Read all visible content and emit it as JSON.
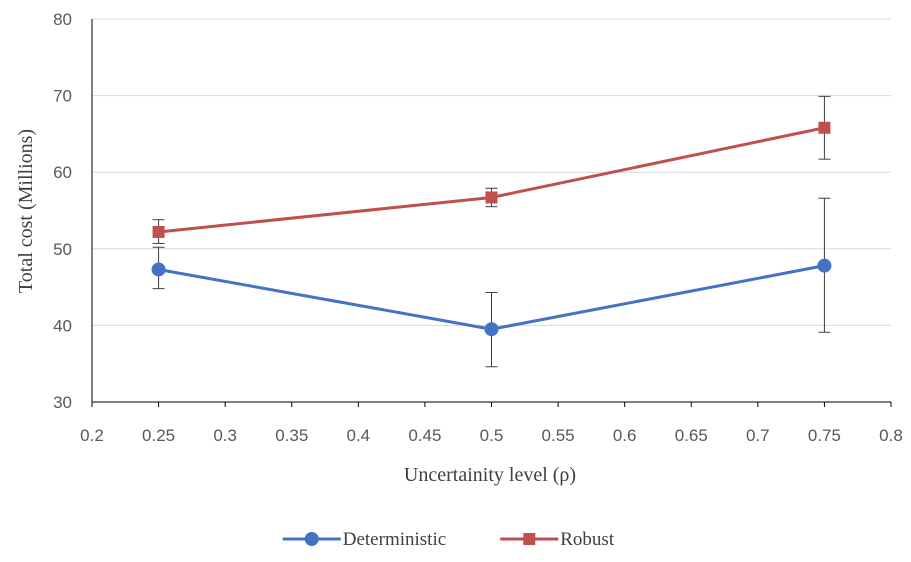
{
  "chart_data": {
    "type": "line",
    "title": "",
    "xlabel": "Uncertainity level (ρ)",
    "ylabel": "Total cost (Millions)",
    "xlim": [
      0.2,
      0.8
    ],
    "ylim": [
      30,
      80
    ],
    "x_ticks": [
      0.2,
      0.25,
      0.3,
      0.35,
      0.4,
      0.45,
      0.5,
      0.55,
      0.6,
      0.65,
      0.7,
      0.75,
      0.8
    ],
    "x_tick_labels": [
      "0.2",
      "0.25",
      "0.3",
      "0.35",
      "0.4",
      "0.45",
      "0.5",
      "0.55",
      "0.6",
      "0.65",
      "0.7",
      "0.75",
      "0.8"
    ],
    "y_ticks": [
      30,
      40,
      50,
      60,
      70,
      80
    ],
    "y_tick_labels": [
      "30",
      "40",
      "50",
      "60",
      "70",
      "80"
    ],
    "grid": "horizontal",
    "legend_position": "bottom",
    "x": [
      0.25,
      0.5,
      0.75
    ],
    "series": [
      {
        "name": "Deterministic",
        "color": "#4472C4",
        "marker": "circle",
        "values": [
          47.3,
          39.5,
          47.8
        ],
        "error_low": [
          44.8,
          34.6,
          39.1
        ],
        "error_high": [
          50.2,
          44.3,
          56.6
        ]
      },
      {
        "name": "Robust",
        "color": "#C0504D",
        "marker": "square",
        "values": [
          52.2,
          56.7,
          65.8
        ],
        "error_low": [
          50.7,
          55.5,
          61.7
        ],
        "error_high": [
          53.8,
          57.9,
          69.9
        ]
      }
    ]
  }
}
